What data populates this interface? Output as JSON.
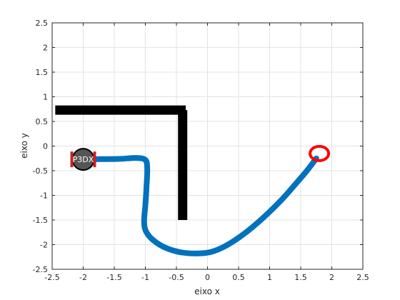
{
  "chart_data": {
    "type": "line",
    "title": "",
    "xlabel": "eixo x",
    "ylabel": "eixo y",
    "xlim": [
      -2.5,
      2.5
    ],
    "ylim": [
      -2.5,
      2.5
    ],
    "grid": true,
    "x_ticks": [
      -2.5,
      -2,
      -1.5,
      -1,
      -0.5,
      0,
      0.5,
      1,
      1.5,
      2,
      2.5
    ],
    "y_ticks": [
      -2.5,
      -2,
      -1.5,
      -1,
      -0.5,
      0,
      0.5,
      1,
      1.5,
      2,
      2.5
    ],
    "x_tick_labels": [
      "-2.5",
      "-2",
      "-1.5",
      "-1",
      "-0.5",
      "0",
      "0.5",
      "1",
      "1.5",
      "2",
      "2.5"
    ],
    "y_tick_labels": [
      "-2.5",
      "-2",
      "-1.5",
      "-1",
      "-0.5",
      "0",
      "0.5",
      "1",
      "1.5",
      "2",
      "2.5"
    ],
    "series": [
      {
        "color": "#0072BD",
        "x": [
          -2.0,
          -1.7,
          -1.4,
          -1.15,
          -1.0,
          -0.97,
          -0.98,
          -1.0,
          -1.02,
          -1.0,
          -0.9,
          -0.7,
          -0.45,
          -0.2,
          0.05,
          0.3,
          0.6,
          0.9,
          1.2,
          1.45,
          1.6,
          1.75
        ],
        "y": [
          -0.27,
          -0.265,
          -0.26,
          -0.24,
          -0.28,
          -0.45,
          -0.8,
          -1.2,
          -1.5,
          -1.7,
          -1.88,
          -2.05,
          -2.15,
          -2.18,
          -2.15,
          -2.02,
          -1.77,
          -1.45,
          -1.08,
          -0.72,
          -0.5,
          -0.25
        ]
      }
    ],
    "walls": [
      {
        "x": [
          -2.45,
          -0.35
        ],
        "y": [
          0.73,
          0.73
        ]
      },
      {
        "x": [
          -0.4,
          -0.4
        ],
        "y": [
          0.73,
          -1.5
        ]
      }
    ],
    "robot": {
      "label": "P3DX",
      "x": -2.0,
      "y": -0.27
    },
    "target": {
      "x": 1.8,
      "y": -0.15,
      "color": "#FF0000"
    }
  }
}
